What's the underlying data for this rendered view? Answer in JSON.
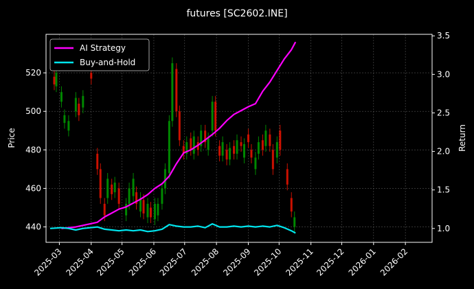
{
  "chart_data": {
    "type": "line",
    "title": "futures [SC2602.INE]",
    "ylabel": "Price",
    "y2label": "Return",
    "x_tick_labels": [
      "2025-03",
      "2025-04",
      "2025-05",
      "2025-06",
      "2025-07",
      "2025-08",
      "2025-09",
      "2025-10",
      "2025-11",
      "2025-12",
      "2026-01",
      "2026-02"
    ],
    "xlim": [
      "2025-02-16",
      "2026-02-27"
    ],
    "ylim": [
      432,
      540
    ],
    "y_ticks": [
      440,
      460,
      480,
      500,
      520
    ],
    "y2lim": [
      0.82,
      3.52
    ],
    "y2_ticks": [
      1.0,
      1.5,
      2.0,
      2.5,
      3.0,
      3.5
    ],
    "grid": true,
    "legend_position": "top-left",
    "background": "#000000",
    "colors": {
      "ai": "#ff00ff",
      "bh": "#00e5ee",
      "up": "#008800",
      "down": "#cc1100"
    },
    "series": [
      {
        "name": "AI Strategy",
        "axis": "right",
        "points": [
          [
            "2025-03-03",
            1.0
          ],
          [
            "2025-03-10",
            1.01
          ],
          [
            "2025-03-17",
            1.02
          ],
          [
            "2025-03-24",
            1.04
          ],
          [
            "2025-03-31",
            1.06
          ],
          [
            "2025-04-07",
            1.08
          ],
          [
            "2025-04-14",
            1.15
          ],
          [
            "2025-04-21",
            1.2
          ],
          [
            "2025-04-28",
            1.25
          ],
          [
            "2025-05-05",
            1.28
          ],
          [
            "2025-05-12",
            1.33
          ],
          [
            "2025-05-19",
            1.38
          ],
          [
            "2025-05-26",
            1.44
          ],
          [
            "2025-06-02",
            1.52
          ],
          [
            "2025-06-09",
            1.58
          ],
          [
            "2025-06-16",
            1.68
          ],
          [
            "2025-06-23",
            1.84
          ],
          [
            "2025-06-30",
            1.98
          ],
          [
            "2025-07-07",
            2.02
          ],
          [
            "2025-07-14",
            2.08
          ],
          [
            "2025-07-21",
            2.15
          ],
          [
            "2025-07-28",
            2.22
          ],
          [
            "2025-08-04",
            2.3
          ],
          [
            "2025-08-11",
            2.4
          ],
          [
            "2025-08-18",
            2.48
          ],
          [
            "2025-08-25",
            2.53
          ],
          [
            "2025-09-01",
            2.58
          ],
          [
            "2025-09-08",
            2.62
          ],
          [
            "2025-09-15",
            2.78
          ],
          [
            "2025-09-22",
            2.9
          ],
          [
            "2025-09-29",
            3.05
          ],
          [
            "2025-10-06",
            3.2
          ],
          [
            "2025-10-13",
            3.32
          ],
          [
            "2025-10-17",
            3.42
          ]
        ]
      },
      {
        "name": "Buy-and-Hold",
        "axis": "right",
        "points": [
          [
            "2025-02-20",
            1.0
          ],
          [
            "2025-03-03",
            1.01
          ],
          [
            "2025-03-10",
            1.0
          ],
          [
            "2025-03-17",
            0.98
          ],
          [
            "2025-03-24",
            1.0
          ],
          [
            "2025-03-31",
            1.01
          ],
          [
            "2025-04-07",
            1.02
          ],
          [
            "2025-04-14",
            0.99
          ],
          [
            "2025-04-21",
            0.98
          ],
          [
            "2025-04-28",
            0.97
          ],
          [
            "2025-05-05",
            0.98
          ],
          [
            "2025-05-12",
            0.97
          ],
          [
            "2025-05-19",
            0.98
          ],
          [
            "2025-05-26",
            0.96
          ],
          [
            "2025-06-02",
            0.97
          ],
          [
            "2025-06-09",
            0.99
          ],
          [
            "2025-06-16",
            1.05
          ],
          [
            "2025-06-23",
            1.03
          ],
          [
            "2025-06-30",
            1.02
          ],
          [
            "2025-07-07",
            1.02
          ],
          [
            "2025-07-14",
            1.03
          ],
          [
            "2025-07-21",
            1.01
          ],
          [
            "2025-07-28",
            1.06
          ],
          [
            "2025-08-04",
            1.02
          ],
          [
            "2025-08-11",
            1.02
          ],
          [
            "2025-08-18",
            1.03
          ],
          [
            "2025-08-25",
            1.02
          ],
          [
            "2025-09-01",
            1.03
          ],
          [
            "2025-09-08",
            1.02
          ],
          [
            "2025-09-15",
            1.03
          ],
          [
            "2025-09-22",
            1.02
          ],
          [
            "2025-09-29",
            1.04
          ],
          [
            "2025-10-06",
            1.01
          ],
          [
            "2025-10-13",
            0.97
          ],
          [
            "2025-10-17",
            0.94
          ]
        ]
      }
    ],
    "candles": [
      [
        "2025-02-24",
        518,
        514
      ],
      [
        "2025-02-26",
        513,
        520
      ],
      [
        "2025-03-03",
        505,
        510
      ],
      [
        "2025-03-06",
        494,
        498
      ],
      [
        "2025-03-10",
        490,
        495
      ],
      [
        "2025-03-17",
        500,
        507
      ],
      [
        "2025-03-20",
        504,
        498
      ],
      [
        "2025-03-24",
        502,
        508
      ],
      [
        "2025-04-01",
        520,
        517
      ],
      [
        "2025-04-07",
        478,
        470
      ],
      [
        "2025-04-10",
        470,
        455
      ],
      [
        "2025-04-14",
        452,
        446
      ],
      [
        "2025-04-17",
        455,
        465
      ],
      [
        "2025-04-21",
        462,
        457
      ],
      [
        "2025-04-24",
        458,
        463
      ],
      [
        "2025-04-28",
        460,
        452
      ],
      [
        "2025-05-05",
        446,
        452
      ],
      [
        "2025-05-08",
        452,
        460
      ],
      [
        "2025-05-12",
        456,
        465
      ],
      [
        "2025-05-15",
        458,
        452
      ],
      [
        "2025-05-19",
        448,
        455
      ],
      [
        "2025-05-22",
        454,
        447
      ],
      [
        "2025-05-26",
        445,
        452
      ],
      [
        "2025-05-29",
        450,
        445
      ],
      [
        "2025-06-02",
        444,
        452
      ],
      [
        "2025-06-05",
        446,
        452
      ],
      [
        "2025-06-09",
        452,
        460
      ],
      [
        "2025-06-12",
        460,
        470
      ],
      [
        "2025-06-16",
        468,
        495
      ],
      [
        "2025-06-19",
        495,
        525
      ],
      [
        "2025-06-23",
        522,
        500
      ],
      [
        "2025-06-26",
        500,
        485
      ],
      [
        "2025-06-30",
        482,
        478
      ],
      [
        "2025-07-03",
        478,
        484
      ],
      [
        "2025-07-07",
        486,
        480
      ],
      [
        "2025-07-10",
        478,
        487
      ],
      [
        "2025-07-14",
        484,
        480
      ],
      [
        "2025-07-17",
        482,
        490
      ],
      [
        "2025-07-21",
        490,
        484
      ],
      [
        "2025-07-24",
        480,
        486
      ],
      [
        "2025-07-28",
        490,
        505
      ],
      [
        "2025-07-31",
        505,
        490
      ],
      [
        "2025-08-04",
        482,
        477
      ],
      [
        "2025-08-07",
        477,
        484
      ],
      [
        "2025-08-11",
        480,
        475
      ],
      [
        "2025-08-14",
        475,
        481
      ],
      [
        "2025-08-18",
        482,
        478
      ],
      [
        "2025-08-21",
        478,
        485
      ],
      [
        "2025-08-25",
        484,
        482
      ],
      [
        "2025-08-28",
        476,
        483
      ],
      [
        "2025-09-01",
        488,
        484
      ],
      [
        "2025-09-04",
        480,
        476
      ],
      [
        "2025-09-08",
        470,
        476
      ],
      [
        "2025-09-11",
        478,
        484
      ],
      [
        "2025-09-15",
        485,
        480
      ],
      [
        "2025-09-18",
        482,
        490
      ],
      [
        "2025-09-22",
        488,
        482
      ],
      [
        "2025-09-25",
        480,
        470
      ],
      [
        "2025-09-29",
        476,
        484
      ],
      [
        "2025-10-02",
        490,
        480
      ],
      [
        "2025-10-09",
        470,
        462
      ],
      [
        "2025-10-13",
        455,
        448
      ],
      [
        "2025-10-16",
        440,
        445
      ]
    ]
  }
}
